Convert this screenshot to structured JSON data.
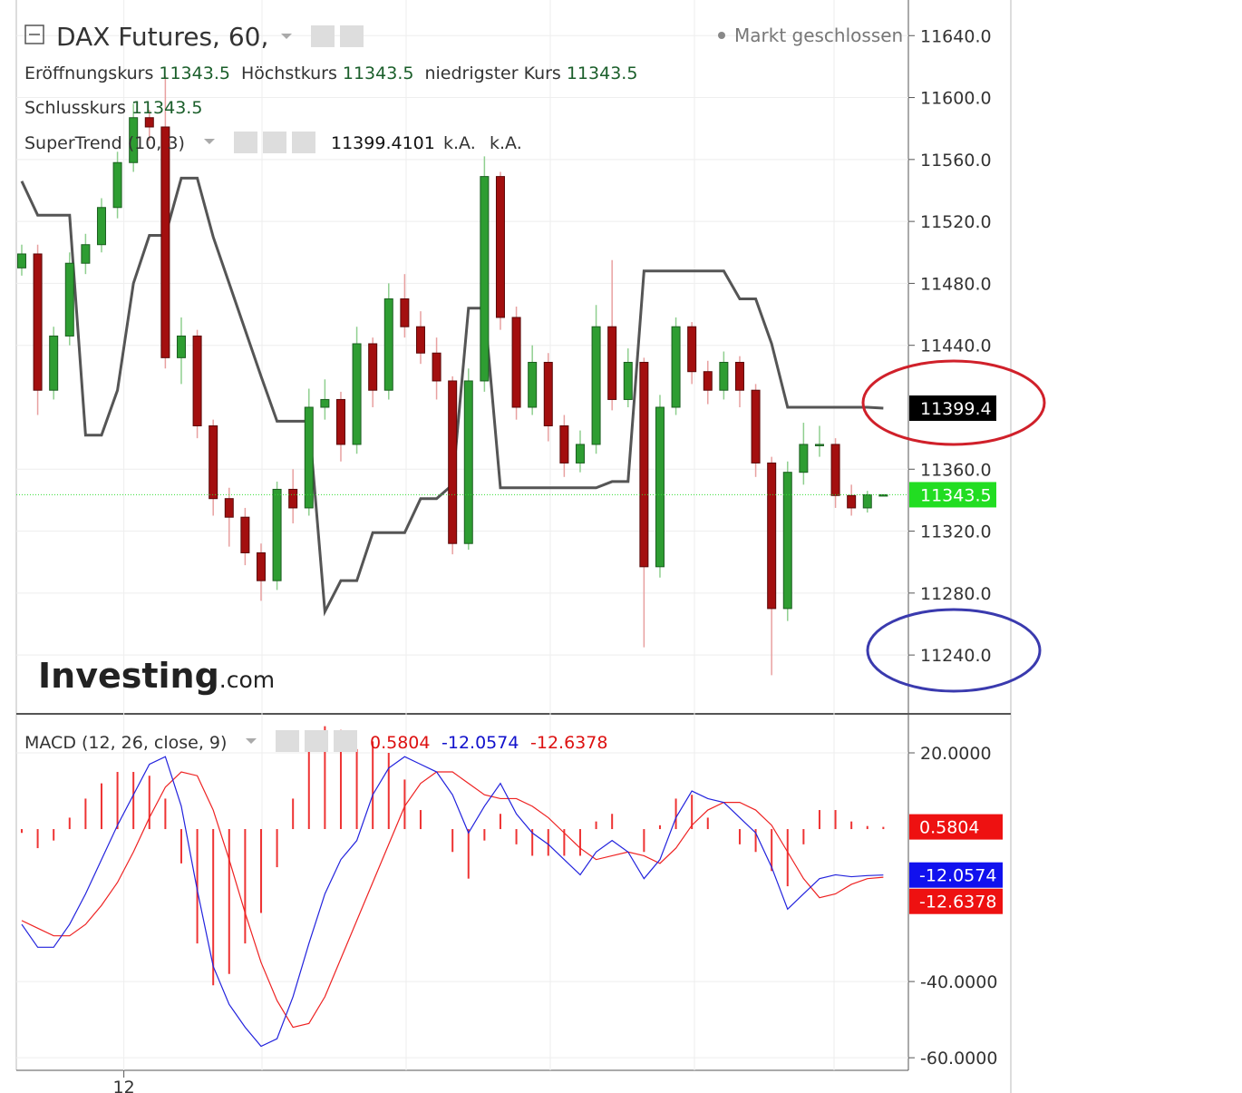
{
  "chart_data": {
    "type": "candlestick",
    "title": "DAX Futures, 60,",
    "status": "Markt geschlossen",
    "ohlc_labels": [
      "Eröffnungskurs",
      "Höchstkurs",
      "niedrigster Kurs",
      "Schlusskurs"
    ],
    "xlim": [
      -0.34,
      55.57
    ],
    "xticks": [
      {
        "value": 6.4,
        "label": "12"
      }
    ],
    "ylim": [
      11202,
      11663
    ],
    "yticks": [
      {
        "value": 11240,
        "label": "11240.0"
      },
      {
        "value": 11280,
        "label": "11280.0"
      },
      {
        "value": 11320,
        "label": "11320.0"
      },
      {
        "value": 11360,
        "label": "11360.0"
      },
      {
        "value": 11440,
        "label": "11440.0"
      },
      {
        "value": 11480,
        "label": "11480.0"
      },
      {
        "value": 11520,
        "label": "11520.0"
      },
      {
        "value": 11560,
        "label": "11560.0"
      },
      {
        "value": 11600,
        "label": "11600.0"
      },
      {
        "value": 11640,
        "label": "11640.0"
      }
    ],
    "up_color": "#2e9d32",
    "down_color": "#a30f0f",
    "open": [
      11490,
      11499,
      11411,
      11446,
      11493,
      11505,
      11529,
      11558,
      11587,
      11581,
      11432,
      11446,
      11388,
      11341,
      11329,
      11306,
      11288,
      11347,
      11335,
      11400,
      11405,
      11376,
      11441,
      11411,
      11470,
      11452,
      11435,
      11417,
      11312,
      11417,
      11549,
      11458,
      11400,
      11429,
      11388,
      11364,
      11376,
      11452,
      11405,
      11429,
      11297,
      11400,
      11452,
      11423,
      11411,
      11429,
      11411,
      11364,
      11270,
      11358,
      11376,
      11376,
      11343,
      11335,
      11343.5
    ],
    "high": [
      11505,
      11505,
      11452,
      11500,
      11512,
      11535,
      11565,
      11596,
      11592,
      11614,
      11458,
      11450,
      11392,
      11348,
      11335,
      11312,
      11352,
      11360,
      11412,
      11418,
      11410,
      11452,
      11445,
      11480,
      11486,
      11462,
      11445,
      11420,
      11425,
      11562,
      11552,
      11465,
      11440,
      11435,
      11395,
      11385,
      11466,
      11495,
      11438,
      11432,
      11408,
      11458,
      11455,
      11430,
      11436,
      11433,
      11415,
      11368,
      11365,
      11390,
      11388,
      11380,
      11350,
      11346,
      11343.5
    ],
    "low": [
      11485,
      11395,
      11405,
      11440,
      11486,
      11500,
      11522,
      11552,
      11572,
      11425,
      11415,
      11380,
      11330,
      11310,
      11298,
      11275,
      11282,
      11325,
      11330,
      11392,
      11365,
      11370,
      11400,
      11405,
      11445,
      11428,
      11405,
      11305,
      11308,
      11410,
      11450,
      11392,
      11395,
      11378,
      11355,
      11358,
      11370,
      11398,
      11400,
      11245,
      11290,
      11395,
      11415,
      11402,
      11405,
      11400,
      11355,
      11227,
      11262,
      11350,
      11368,
      11335,
      11330,
      11332,
      11343.5
    ],
    "close": [
      11499,
      11411,
      11446,
      11493,
      11505,
      11529,
      11558,
      11587,
      11581,
      11432,
      11446,
      11388,
      11341,
      11329,
      11306,
      11288,
      11347,
      11335,
      11400,
      11405,
      11376,
      11441,
      11411,
      11470,
      11452,
      11435,
      11417,
      11312,
      11417,
      11549,
      11458,
      11400,
      11429,
      11388,
      11364,
      11376,
      11452,
      11405,
      11429,
      11297,
      11400,
      11452,
      11423,
      11411,
      11429,
      11411,
      11364,
      11270,
      11358,
      11376,
      11376,
      11343,
      11335,
      11343.5,
      11343.5
    ],
    "supertrend": {
      "name": "SuperTrend (10, 3)",
      "color": "#555555",
      "badge_label": "11399.4",
      "na_labels": [
        "k.A.",
        "k.A."
      ],
      "values": [
        11546,
        11524,
        11524,
        11524,
        11382,
        11382,
        11411,
        11480,
        11511,
        11511,
        11548,
        11548,
        11510,
        11480,
        11450,
        11420,
        11391,
        11391,
        11391,
        11268,
        11288,
        11288,
        11319,
        11319,
        11319,
        11341,
        11341,
        11350,
        11464,
        11464,
        11348,
        11348,
        11348,
        11348,
        11348,
        11348,
        11348,
        11352,
        11352,
        11488,
        11488,
        11488,
        11488,
        11488,
        11488,
        11470,
        11470,
        11441,
        11400,
        11400,
        11400,
        11400,
        11400,
        11400,
        11399.4101
      ]
    },
    "watermark": {
      "brand": "Investing",
      "suffix": ".com"
    },
    "macd": {
      "title": "MACD (12, 26, close, 9)",
      "ylim": [
        -63.3,
        30
      ],
      "yticks": [
        {
          "value": -60,
          "label": "-60.0000"
        },
        {
          "value": -40,
          "label": "-40.0000"
        },
        {
          "value": 20,
          "label": "20.0000"
        }
      ],
      "histogram": {
        "color": "#ee3333",
        "values": [
          -1,
          -5,
          -3,
          3,
          8,
          12,
          15,
          15,
          14,
          8,
          -9,
          -30,
          -41,
          -38,
          -30,
          -22,
          -10,
          8,
          21,
          27,
          26,
          21,
          23,
          20,
          13,
          5,
          0,
          -6,
          -13,
          -3,
          4,
          -4,
          -7,
          -7,
          -7,
          -7,
          2,
          4,
          0,
          -6,
          1,
          8,
          9,
          3,
          0,
          -4,
          -6,
          -11,
          -15,
          -4,
          5,
          5,
          2,
          0.8,
          0.5804
        ]
      },
      "macd": {
        "color": "#2222dd",
        "values": [
          -25,
          -31,
          -31,
          -25,
          -17,
          -8,
          1,
          9,
          17,
          19,
          6,
          -16,
          -36,
          -46,
          -52,
          -57,
          -55,
          -44,
          -30,
          -17,
          -8,
          -3,
          9,
          16,
          19,
          17,
          15,
          9,
          -1,
          6,
          12,
          4,
          -1,
          -4,
          -8,
          -12,
          -6,
          -3,
          -6,
          -13,
          -8,
          3,
          10,
          8,
          7,
          3,
          -1,
          -10,
          -21,
          -17,
          -13,
          -12,
          -12.5,
          -12.2,
          -12.0574
        ]
      },
      "signal": {
        "color": "#ee2222",
        "values": [
          -24,
          -26,
          -28,
          -28,
          -25,
          -20,
          -14,
          -6,
          3,
          11,
          15,
          14,
          5,
          -8,
          -22,
          -35,
          -45,
          -52,
          -51,
          -44,
          -34,
          -24,
          -14,
          -4,
          6,
          12,
          15,
          15,
          12,
          9,
          8,
          8,
          6,
          3,
          -1,
          -5,
          -8,
          -7,
          -6,
          -7,
          -9,
          -5,
          1,
          5,
          7,
          7,
          5,
          1,
          -6,
          -13,
          -18,
          -17,
          -14.5,
          -13,
          -12.6378
        ]
      }
    }
  }
}
